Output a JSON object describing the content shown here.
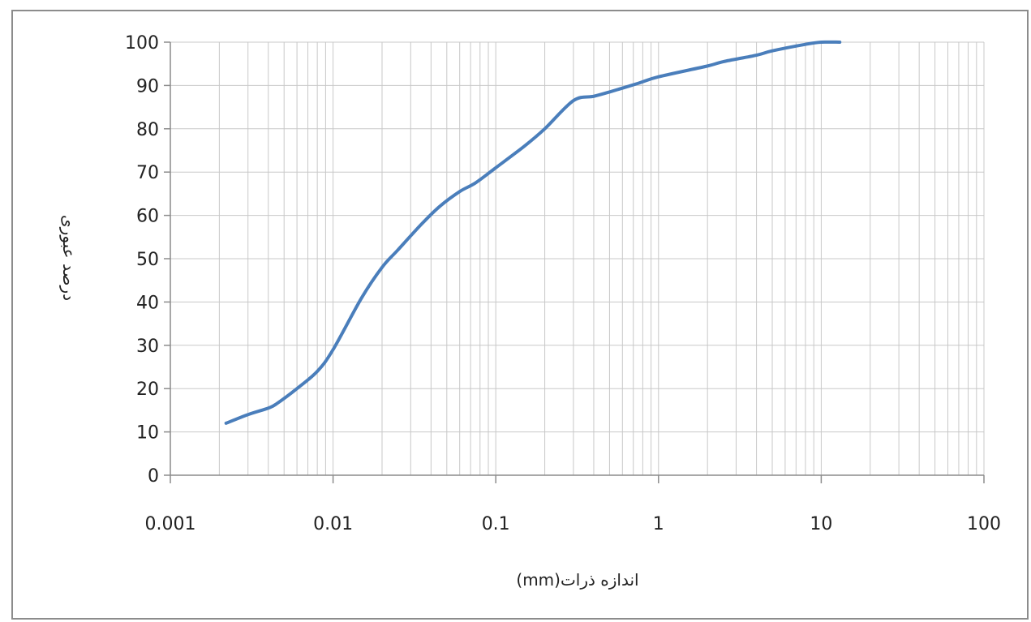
{
  "chart_data": {
    "type": "line",
    "title": "",
    "xlabel": "اندازه ذرات(mm)",
    "ylabel": "درصد عبوری",
    "x_scale": "log",
    "xlim": [
      0.001,
      100
    ],
    "ylim": [
      0,
      100
    ],
    "x_tick_labels": [
      "0.001",
      "0.01",
      "0.1",
      "1",
      "10",
      "100"
    ],
    "y_tick_labels": [
      "0",
      "10",
      "20",
      "30",
      "40",
      "50",
      "60",
      "70",
      "80",
      "90",
      "100"
    ],
    "grid": true,
    "legend": "none",
    "colors": {
      "series": "#4a7ebb",
      "grid": "#c8c8c8",
      "axis": "#8c8c8c"
    },
    "series": [
      {
        "x": [
          0.0022,
          0.003,
          0.004,
          0.0045,
          0.006,
          0.008,
          0.01,
          0.015,
          0.02,
          0.025,
          0.035,
          0.045,
          0.06,
          0.075,
          0.1,
          0.15,
          0.2,
          0.3,
          0.4,
          0.5,
          0.75,
          1,
          2,
          2.5,
          4,
          5,
          8,
          10,
          13
        ],
        "y": [
          12,
          14,
          15.5,
          16.5,
          20,
          24,
          29,
          41,
          48,
          52,
          58,
          62,
          65.5,
          67.5,
          71,
          76,
          80,
          86.5,
          87.5,
          88.5,
          90.5,
          92,
          94.5,
          95.5,
          97,
          98,
          99.5,
          100,
          100
        ]
      }
    ]
  }
}
